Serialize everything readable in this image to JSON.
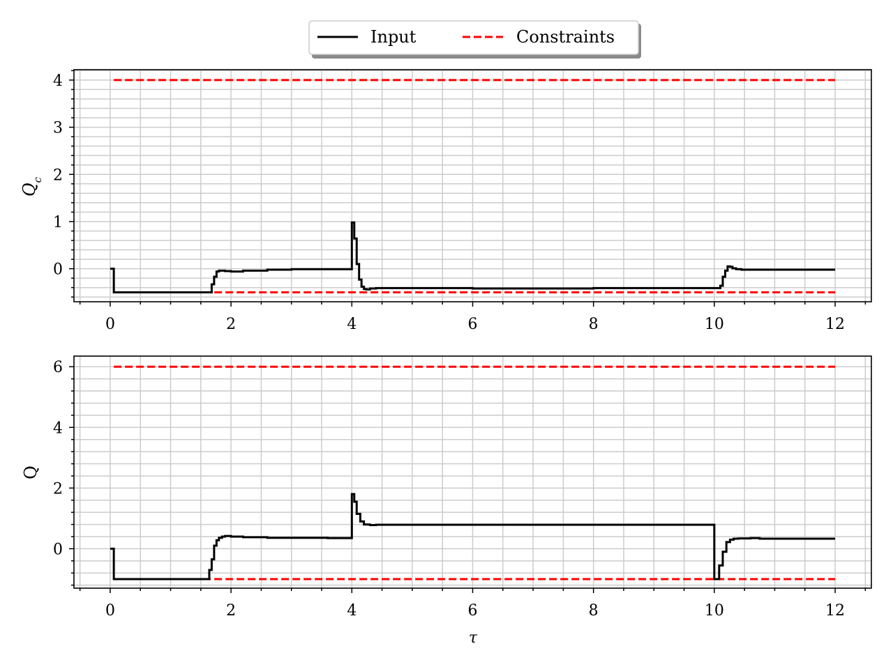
{
  "legend": {
    "entries": [
      {
        "label": "Input",
        "color": "#000000",
        "style": "solid"
      },
      {
        "label": "Constraints",
        "color": "#ff0000",
        "style": "dashed"
      }
    ],
    "placement": "top-center"
  },
  "chart_data": [
    {
      "type": "line",
      "step": true,
      "ylabel": "Q_c",
      "xlabel": "",
      "xlim": [
        -0.6,
        12.6
      ],
      "ylim": [
        -0.7,
        4.22
      ],
      "x_ticks": [
        0,
        2,
        4,
        6,
        8,
        10,
        12
      ],
      "y_ticks": [
        0,
        1,
        2,
        3,
        4
      ],
      "grid": true,
      "minor_grid": true,
      "series": [
        {
          "name": "Input",
          "color": "#000000",
          "x": [
            0,
            0.06,
            1.64,
            1.68,
            1.72,
            1.76,
            1.8,
            1.9,
            2.0,
            2.2,
            2.6,
            3.0,
            3.6,
            3.99,
            4.0,
            4.04,
            4.08,
            4.12,
            4.16,
            4.2,
            4.24,
            4.3,
            4.4,
            6.0,
            8.0,
            10.0,
            10.1,
            10.14,
            10.18,
            10.22,
            10.26,
            10.3,
            10.36,
            10.45,
            10.6,
            12.0
          ],
          "y": [
            0,
            -0.5,
            -0.5,
            -0.33,
            -0.17,
            -0.06,
            -0.04,
            -0.05,
            -0.06,
            -0.04,
            -0.02,
            -0.01,
            -0.01,
            -0.01,
            0.98,
            0.64,
            0.1,
            -0.23,
            -0.38,
            -0.43,
            -0.44,
            -0.42,
            -0.41,
            -0.42,
            -0.41,
            -0.41,
            -0.36,
            -0.17,
            -0.04,
            0.05,
            0.04,
            0.01,
            -0.01,
            -0.02,
            -0.02,
            -0.02
          ]
        },
        {
          "name": "Constraints",
          "color": "#ff0000",
          "dashed": true,
          "x": [
            0.06,
            12.0
          ],
          "y": [
            4,
            4
          ]
        },
        {
          "name": "Constraints",
          "color": "#ff0000",
          "dashed": true,
          "x": [
            0.06,
            12.0
          ],
          "y": [
            -0.5,
            -0.5
          ]
        }
      ]
    },
    {
      "type": "line",
      "step": true,
      "ylabel": "Q",
      "xlabel": "τ",
      "xlim": [
        -0.6,
        12.6
      ],
      "ylim": [
        -1.3,
        6.35
      ],
      "x_ticks": [
        0,
        2,
        4,
        6,
        8,
        10,
        12
      ],
      "y_ticks": [
        0,
        2,
        4,
        6
      ],
      "grid": true,
      "minor_grid": true,
      "series": [
        {
          "name": "Input",
          "color": "#000000",
          "x": [
            0,
            0.06,
            1.6,
            1.64,
            1.68,
            1.72,
            1.76,
            1.8,
            1.85,
            1.9,
            2.0,
            2.2,
            2.6,
            3.6,
            3.99,
            4.0,
            4.04,
            4.08,
            4.14,
            4.2,
            4.3,
            4.4,
            6.0,
            8.0,
            9.99,
            10.0,
            10.08,
            10.14,
            10.2,
            10.26,
            10.32,
            10.4,
            10.6,
            10.75,
            12.0
          ],
          "y": [
            0,
            -1,
            -1,
            -0.7,
            -0.35,
            0.1,
            0.28,
            0.36,
            0.4,
            0.42,
            0.4,
            0.38,
            0.36,
            0.35,
            0.35,
            1.8,
            1.55,
            1.15,
            0.9,
            0.8,
            0.78,
            0.79,
            0.79,
            0.79,
            0.79,
            -1,
            -0.55,
            -0.1,
            0.22,
            0.3,
            0.33,
            0.34,
            0.35,
            0.33,
            0.33
          ]
        },
        {
          "name": "Constraints",
          "color": "#ff0000",
          "dashed": true,
          "x": [
            0.06,
            12.0
          ],
          "y": [
            6,
            6
          ]
        },
        {
          "name": "Constraints",
          "color": "#ff0000",
          "dashed": true,
          "x": [
            0.06,
            12.0
          ],
          "y": [
            -1,
            -1
          ]
        }
      ]
    }
  ]
}
